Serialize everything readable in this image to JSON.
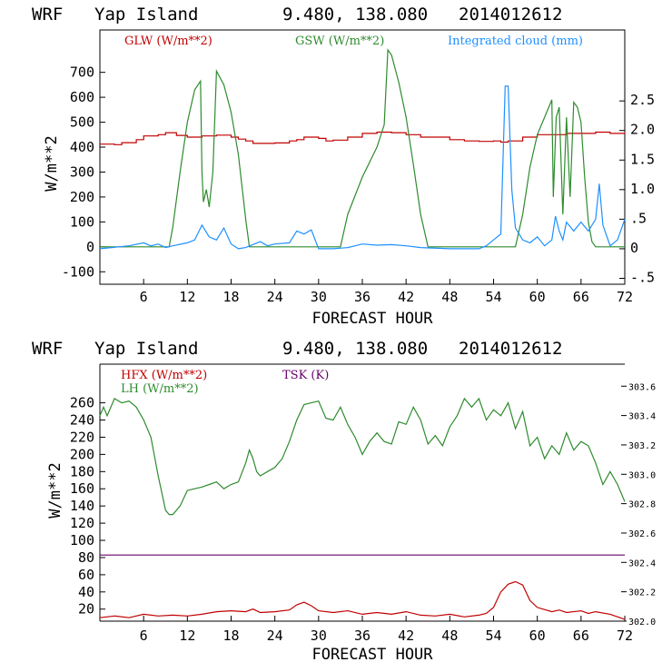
{
  "panels": {
    "top": {
      "header": {
        "model": "WRF",
        "location": "Yap Island",
        "coords": "9.480, 138.080",
        "init": "2014012612"
      }
    },
    "bottom": {
      "header": {
        "model": "WRF",
        "location": "Yap Island",
        "coords": "9.480, 138.080",
        "init": "2014012612"
      }
    }
  },
  "chart_data": [
    {
      "type": "line",
      "title": "WRF Yap Island 9.480, 138.080 2014012612",
      "xlabel": "FORECAST HOUR",
      "ylabel": "W/m**2",
      "y2label": "",
      "xlim": [
        0,
        72
      ],
      "ylim": [
        -150,
        870
      ],
      "y2lim": [
        -0.6,
        3.7
      ],
      "xticks": [
        6,
        12,
        18,
        24,
        30,
        36,
        42,
        48,
        54,
        60,
        66,
        72
      ],
      "yticks": [
        -100,
        0,
        100,
        200,
        300,
        400,
        500,
        600,
        700
      ],
      "y2ticks": [
        -0.5,
        0,
        0.5,
        1.0,
        1.5,
        2.0,
        2.5
      ],
      "y2ticklabels": [
        "-.5",
        "0",
        ".5",
        "1.0",
        "1.5",
        "2.0",
        "2.5"
      ],
      "series": [
        {
          "name": "GLW (W/m**2)",
          "axis": "left",
          "color": "#c00000",
          "x": [
            0,
            2,
            3,
            5,
            6,
            8,
            9,
            10,
            10.5,
            12,
            14,
            16,
            18,
            19,
            20,
            21,
            24,
            26,
            27,
            28,
            30,
            31,
            32,
            34,
            36,
            38,
            40,
            42,
            44,
            46,
            48,
            50,
            52,
            54,
            55,
            56,
            58,
            60,
            62,
            64,
            66,
            68,
            70,
            72
          ],
          "y": [
            412,
            410,
            418,
            430,
            445,
            450,
            458,
            458,
            447,
            440,
            445,
            448,
            440,
            432,
            425,
            415,
            417,
            425,
            430,
            440,
            435,
            425,
            428,
            440,
            455,
            460,
            458,
            450,
            440,
            440,
            430,
            425,
            423,
            425,
            420,
            425,
            440,
            450,
            450,
            455,
            455,
            460,
            455,
            460
          ]
        },
        {
          "name": "GSW (W/m**2)",
          "axis": "left",
          "color": "#2e8b2e",
          "x": [
            0,
            9.5,
            10,
            11,
            12,
            13,
            13.8,
            14,
            14.2,
            14.6,
            15,
            15.5,
            16,
            17,
            18,
            19,
            20,
            20.5,
            21,
            33,
            34,
            36,
            38,
            39,
            39.5,
            40,
            41,
            42,
            43,
            44,
            45,
            57,
            58,
            59,
            60,
            61,
            62,
            62.2,
            62.6,
            63,
            63.5,
            64,
            64.5,
            65,
            65.5,
            66,
            66.5,
            67,
            67.5,
            68,
            72
          ],
          "y": [
            0,
            0,
            80,
            300,
            500,
            630,
            665,
            300,
            180,
            230,
            160,
            300,
            705,
            650,
            540,
            370,
            110,
            0,
            0,
            0,
            130,
            280,
            400,
            490,
            790,
            770,
            660,
            520,
            330,
            130,
            0,
            0,
            130,
            320,
            450,
            520,
            590,
            200,
            520,
            560,
            130,
            520,
            200,
            580,
            560,
            500,
            280,
            100,
            20,
            0,
            0
          ]
        },
        {
          "name": "Integrated cloud (mm)",
          "axis": "right",
          "color": "#1e90ff",
          "x": [
            0,
            4,
            6,
            7,
            8,
            9,
            10,
            12,
            13,
            14,
            15,
            16,
            17,
            18,
            19,
            20,
            22,
            23,
            24,
            26,
            27,
            28,
            29,
            30,
            32,
            34,
            35,
            36,
            38,
            40,
            42,
            44,
            48,
            52,
            53,
            54,
            55,
            55.6,
            56,
            56.5,
            57,
            58,
            59,
            60,
            61,
            62,
            62.5,
            63,
            63.5,
            64,
            65,
            66,
            67,
            68,
            68.5,
            69,
            70,
            71,
            72
          ],
          "y": [
            0,
            0.05,
            0.1,
            0.05,
            0.08,
            0.02,
            0.05,
            0.1,
            0.15,
            0.4,
            0.2,
            0.15,
            0.35,
            0.08,
            0.0,
            0.02,
            0.12,
            0.05,
            0.08,
            0.1,
            0.3,
            0.25,
            0.32,
            0.0,
            0.0,
            0.02,
            0.05,
            0.08,
            0.06,
            0.07,
            0.05,
            0.02,
            0.0,
            0.0,
            0.05,
            0.15,
            0.25,
            2.75,
            2.75,
            1.0,
            0.35,
            0.15,
            0.1,
            0.2,
            0.05,
            0.15,
            0.55,
            0.3,
            0.15,
            0.45,
            0.3,
            0.45,
            0.3,
            0.5,
            1.1,
            0.4,
            0.05,
            0.15,
            0.5
          ]
        }
      ]
    },
    {
      "type": "line",
      "title": "WRF Yap Island 9.480, 138.080 2014012612",
      "xlabel": "FORECAST HOUR",
      "ylabel": "W/m**2",
      "xlim": [
        0,
        72
      ],
      "ylim": [
        6,
        305
      ],
      "y2lim": [
        302.0,
        303.75
      ],
      "xticks": [
        6,
        12,
        18,
        24,
        30,
        36,
        42,
        48,
        54,
        60,
        66,
        72
      ],
      "yticks": [
        20,
        40,
        60,
        80,
        100,
        120,
        140,
        160,
        180,
        200,
        220,
        240,
        260
      ],
      "y2ticks": [
        302.0,
        302.2,
        302.4,
        302.6,
        302.8,
        303.0,
        303.2,
        303.4,
        303.6
      ],
      "y2ticklabels": [
        "302.0",
        "302.2",
        "302.4",
        "302.6",
        "302.8",
        "303.0",
        "303.2",
        "303.4",
        "303.6"
      ],
      "series": [
        {
          "name": "HFX (W/m**2)",
          "axis": "left",
          "color": "#c00000",
          "x": [
            0,
            2,
            4,
            6,
            8,
            10,
            12,
            14,
            16,
            18,
            20,
            21,
            22,
            24,
            26,
            27,
            28,
            29,
            30,
            32,
            34,
            36,
            38,
            40,
            42,
            44,
            46,
            48,
            50,
            52,
            53,
            54,
            55,
            56,
            57,
            58,
            59,
            60,
            62,
            63,
            64,
            66,
            67,
            68,
            70,
            72
          ],
          "y": [
            10,
            12,
            10,
            14,
            12,
            13,
            12,
            14,
            17,
            18,
            17,
            20,
            16,
            17,
            19,
            25,
            28,
            24,
            18,
            16,
            18,
            14,
            16,
            14,
            17,
            13,
            12,
            14,
            11,
            13,
            15,
            22,
            40,
            49,
            52,
            48,
            30,
            22,
            17,
            19,
            16,
            18,
            15,
            17,
            14,
            8
          ]
        },
        {
          "name": "LH (W/m**2)",
          "axis": "left",
          "color": "#2e8b2e",
          "x": [
            0,
            0.5,
            1,
            2,
            3,
            4,
            5,
            6,
            7,
            8,
            9,
            9.5,
            10,
            11,
            12,
            13,
            14,
            15,
            16,
            17,
            18,
            19,
            20,
            20.5,
            21,
            21.5,
            22,
            23,
            24,
            25,
            26,
            27,
            28,
            29,
            30,
            31,
            32,
            33,
            34,
            35,
            36,
            37,
            38,
            39,
            40,
            41,
            42,
            43,
            44,
            45,
            46,
            47,
            48,
            49,
            50,
            51,
            52,
            53,
            54,
            55,
            56,
            57,
            58,
            59,
            60,
            61,
            62,
            63,
            64,
            65,
            66,
            67,
            68,
            69,
            70,
            71,
            72
          ],
          "y": [
            245,
            255,
            245,
            265,
            260,
            262,
            255,
            240,
            220,
            175,
            135,
            130,
            130,
            140,
            158,
            160,
            162,
            165,
            168,
            160,
            165,
            168,
            190,
            205,
            195,
            180,
            175,
            180,
            185,
            195,
            215,
            240,
            258,
            260,
            262,
            242,
            240,
            255,
            235,
            220,
            200,
            215,
            225,
            215,
            212,
            238,
            235,
            255,
            240,
            212,
            222,
            210,
            232,
            245,
            265,
            255,
            265,
            240,
            252,
            245,
            260,
            230,
            250,
            210,
            220,
            195,
            210,
            200,
            225,
            205,
            215,
            210,
            190,
            165,
            180,
            165,
            145
          ]
        },
        {
          "name": "TSK (K)",
          "axis": "right",
          "color": "#660066",
          "x": [
            0,
            72
          ],
          "y": [
            302.45,
            302.45
          ]
        }
      ]
    }
  ]
}
